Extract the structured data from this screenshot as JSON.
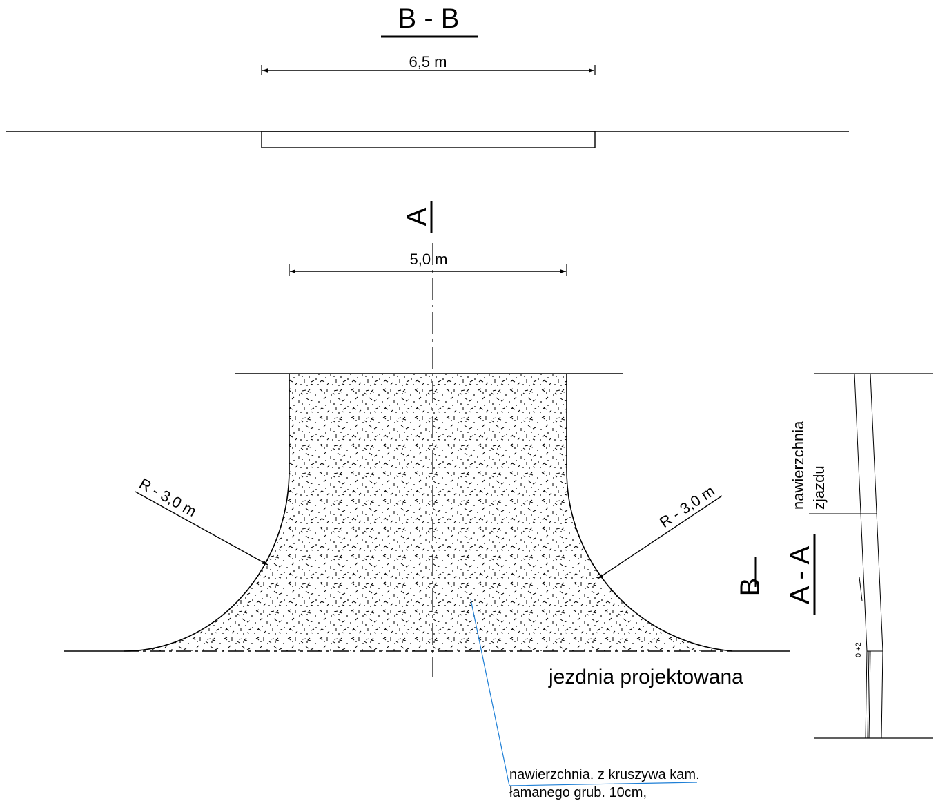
{
  "section_bb": {
    "title": "B  -  B",
    "dim_label": "6,5 m"
  },
  "plan": {
    "section_mark_a": "A",
    "section_mark_b": "B",
    "width_label": "5,0 m",
    "radius_left": "R - 3,0 m",
    "radius_right": "R - 3,0 m",
    "road_label": "jezdnia projektowana",
    "surface_note_line1": "nawierzchnia. z kruszywa kam.",
    "surface_note_line2": "łamanego  grub. 10cm,"
  },
  "section_aa": {
    "title": "A - A",
    "label_line1": "nawierzchnia",
    "label_line2": "zjazdu",
    "slope_label": "0 +2"
  },
  "colors": {
    "ink": "#000000",
    "leader": "#1e7fd6"
  }
}
